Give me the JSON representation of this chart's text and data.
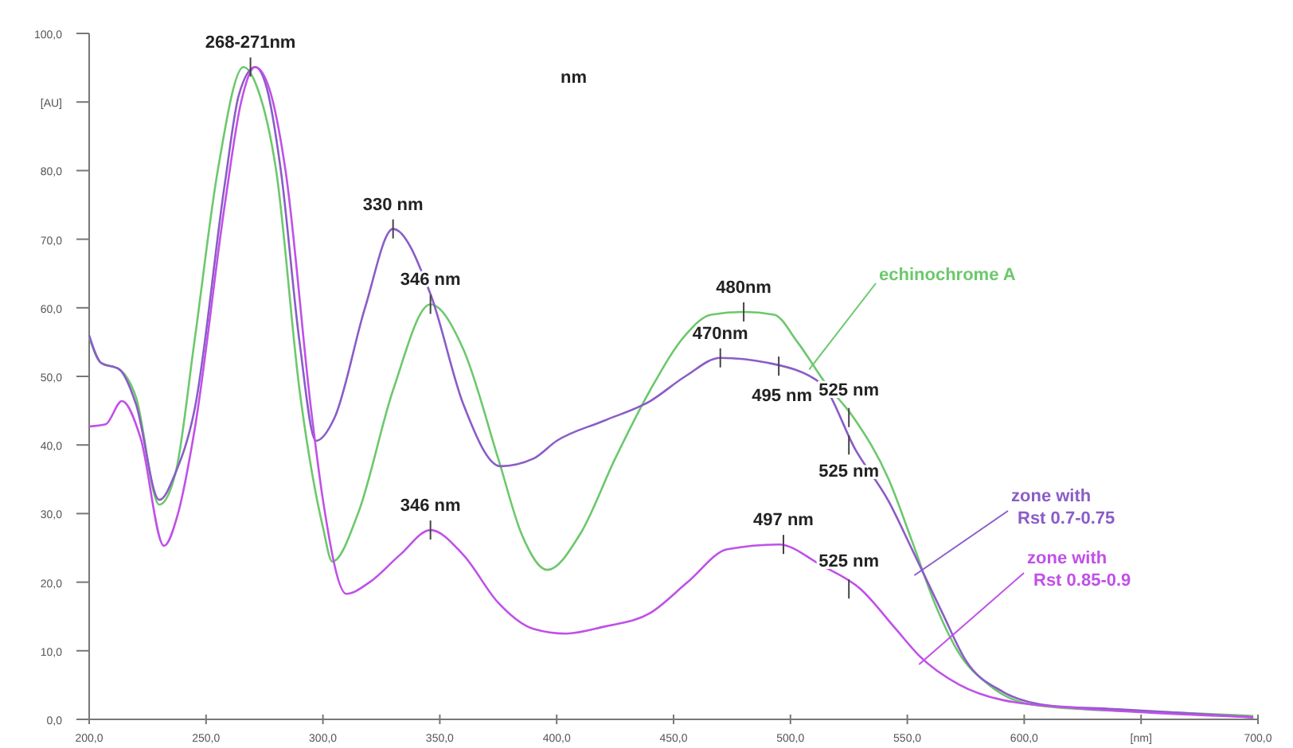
{
  "chart_data": {
    "type": "line",
    "xlim": [
      200,
      700
    ],
    "ylim": [
      0,
      100
    ],
    "xticks": [
      {
        "value": 200,
        "label": "200,0"
      },
      {
        "value": 250,
        "label": "250,0"
      },
      {
        "value": 300,
        "label": "300,0"
      },
      {
        "value": 350,
        "label": "350,0"
      },
      {
        "value": 400,
        "label": "400,0"
      },
      {
        "value": 450,
        "label": "450,0"
      },
      {
        "value": 500,
        "label": "500,0"
      },
      {
        "value": 550,
        "label": "550,0"
      },
      {
        "value": 600,
        "label": "600,0"
      },
      {
        "value": 650,
        "label": "[nm]"
      },
      {
        "value": 700,
        "label": "700,0"
      }
    ],
    "yticks": [
      {
        "value": 0,
        "label": "0,0"
      },
      {
        "value": 10,
        "label": "10,0"
      },
      {
        "value": 20,
        "label": "20,0"
      },
      {
        "value": 30,
        "label": "30,0"
      },
      {
        "value": 40,
        "label": "40,0"
      },
      {
        "value": 50,
        "label": "50,0"
      },
      {
        "value": 60,
        "label": "60,0"
      },
      {
        "value": 70,
        "label": "70,0"
      },
      {
        "value": 80,
        "label": "80,0"
      },
      {
        "value": 90,
        "label": "[AU]"
      },
      {
        "value": 100,
        "label": "100,0"
      }
    ],
    "grid": false,
    "marker": "none",
    "line_style": "solid",
    "series": [
      {
        "name": "echinochrome A",
        "color": "#6cc86c",
        "x": [
          200,
          205,
          213,
          220,
          230,
          237,
          245,
          255,
          266,
          272,
          280,
          290,
          300,
          304,
          315,
          330,
          346,
          360,
          375,
          385,
          396,
          410,
          425,
          440,
          455,
          466,
          480,
          493,
          503,
          515,
          527,
          542,
          552,
          562,
          572,
          585,
          601,
          624,
          664,
          698
        ],
        "values": [
          55.7,
          52,
          51,
          47,
          31.3,
          36,
          55,
          80,
          95.1,
          92,
          80,
          48,
          28,
          23,
          30,
          48,
          60.5,
          54,
          38,
          27,
          21.8,
          27,
          38,
          48,
          56,
          59,
          59.4,
          59,
          55,
          49,
          44,
          35,
          26,
          16.7,
          9.7,
          5,
          2.3,
          1.5,
          1,
          0.5
        ]
      },
      {
        "name": "zone with Rst 0.7-0.75",
        "color": "#8a5cc8",
        "x": [
          200,
          205,
          213,
          220,
          230,
          237,
          245,
          258,
          264,
          271,
          276,
          282,
          290,
          297,
          305,
          318,
          330,
          346,
          360,
          376,
          390,
          400,
          420,
          440,
          455,
          470,
          490,
          513,
          528,
          542,
          552,
          565,
          575,
          591,
          611,
          638,
          664,
          698
        ],
        "values": [
          56,
          52,
          51,
          46,
          32,
          36,
          45,
          78,
          91,
          95.1,
          92,
          80,
          55,
          40.6,
          44,
          60,
          71.5,
          62,
          46,
          36.9,
          38,
          40.6,
          43.5,
          46.4,
          50,
          52.7,
          52,
          49,
          39.2,
          31.8,
          24.8,
          15.5,
          8.6,
          4,
          2,
          1.5,
          1,
          0.3
        ]
      },
      {
        "name": "zone with Rst 0.85-0.9",
        "color": "#c050e8",
        "x": [
          200,
          207,
          214,
          222,
          232,
          238,
          245,
          258,
          265,
          271,
          277,
          284,
          295,
          300,
          310,
          320,
          333,
          346,
          360,
          375,
          390,
          404,
          420,
          440,
          456,
          473,
          495,
          513,
          530,
          545,
          555,
          572,
          591,
          624,
          664,
          698
        ],
        "values": [
          42.7,
          43,
          46.4,
          41,
          25.3,
          30,
          42,
          75,
          90,
          95.1,
          92,
          80,
          45,
          32,
          18.3,
          20,
          24,
          27.6,
          24,
          17,
          13.2,
          12.5,
          13.5,
          15.5,
          20,
          24.8,
          25.5,
          22.5,
          19,
          13.2,
          9.3,
          5.1,
          2.8,
          1.6,
          0.8,
          0.3
        ]
      }
    ],
    "annotations": [
      {
        "text": "268-271nm",
        "x": 269,
        "y": 95.1
      },
      {
        "text": "330 nm",
        "x": 330,
        "y": 71.5
      },
      {
        "text": "346 nm",
        "x": 346,
        "y": 60.5
      },
      {
        "text": "346 nm",
        "x": 346,
        "y": 27.6
      },
      {
        "text": "480nm",
        "x": 480,
        "y": 59.4
      },
      {
        "text": "470nm",
        "x": 470,
        "y": 52.7
      },
      {
        "text": "495 nm",
        "x": 495,
        "y": 51.5
      },
      {
        "text": "525 nm",
        "x": 525,
        "y": 44
      },
      {
        "text": "525 nm",
        "x": 525,
        "y": 40
      },
      {
        "text": "497 nm",
        "x": 497,
        "y": 25.5
      },
      {
        "text": "525 nm",
        "x": 525,
        "y": 19
      },
      "nm"
    ]
  }
}
